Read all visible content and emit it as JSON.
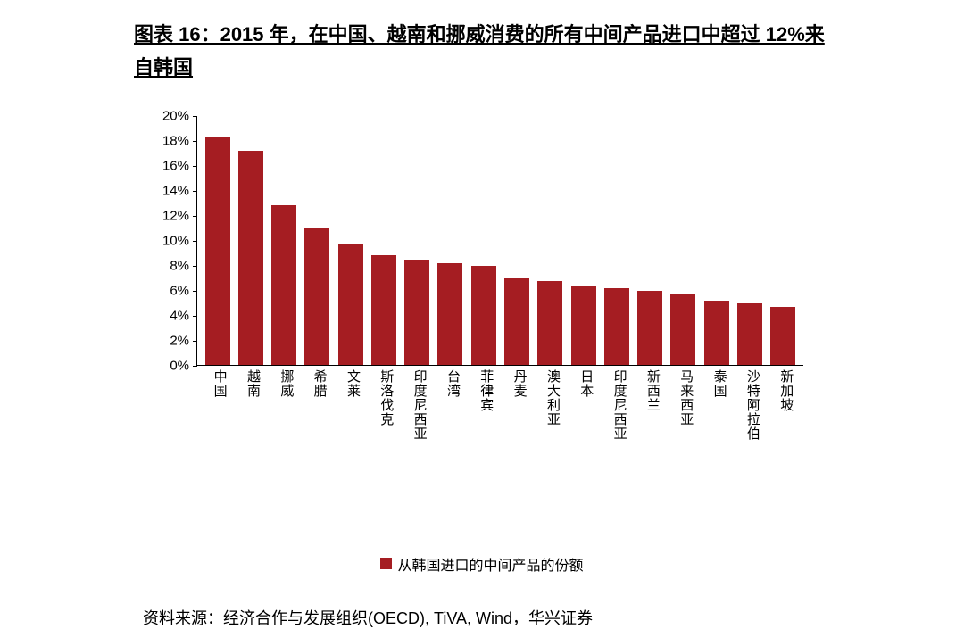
{
  "title": "图表 16：2015 年，在中国、越南和挪威消费的所有中间产品进口中超过 12%来自韩国",
  "chart": {
    "type": "bar",
    "categories": [
      "中国",
      "越南",
      "挪威",
      "希腊",
      "文莱",
      "斯洛伐克",
      "印度尼西亚",
      "台湾",
      "菲律宾",
      "丹麦",
      "澳大利亚",
      "日本",
      "印度尼西亚",
      "新西兰",
      "马来西亚",
      "泰国",
      "沙特阿拉伯",
      "新加坡"
    ],
    "values": [
      18.2,
      17.1,
      12.8,
      11.0,
      9.6,
      8.8,
      8.4,
      8.1,
      7.9,
      6.9,
      6.7,
      6.3,
      6.1,
      5.9,
      5.7,
      5.1,
      4.9,
      4.6
    ],
    "bar_color": "#a51d22",
    "background_color": "#ffffff",
    "axis_color": "#000000",
    "ylim": [
      0,
      20
    ],
    "ytick_step": 2,
    "ytick_labels": [
      "0%",
      "2%",
      "4%",
      "6%",
      "8%",
      "10%",
      "12%",
      "14%",
      "16%",
      "18%",
      "20%"
    ],
    "label_fontsize": 15,
    "bar_width": 0.72
  },
  "legend": {
    "label": "从韩国进口的中间产品的份额",
    "swatch_color": "#a51d22"
  },
  "source": "资料来源：经济合作与发展组织(OECD), TiVA, Wind，华兴证券"
}
